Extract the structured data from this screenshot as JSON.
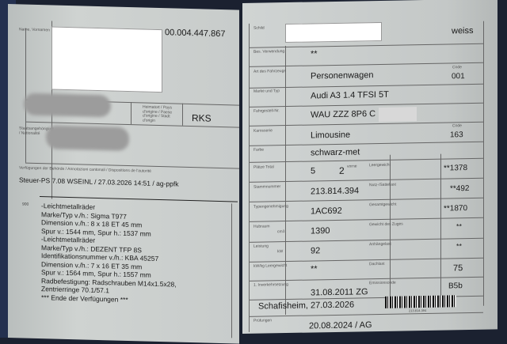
{
  "left_page": {
    "doc_number": "00.004.447.867",
    "labels": {
      "name": "Name, Vornamen",
      "origin": "Heimatort / Pays d'origine / Paese d'origine / Stadt d'origin",
      "nationality": "Staatsangehörigkeit / Nationalité",
      "official_notes": "Verfügungen der Behörde / Annotazioni cantonali / Dispositions de l'autorité"
    },
    "origin_value": "RKS",
    "stamp_line": "Steuer-PS 7.08 WSEINL / 27.03.2026 14:51 / ag-ppfk",
    "notes_code": "900",
    "notes": [
      "-Leichtmetallräder",
      "Marke/Typ v./h.: Sigma T977",
      "Dimension v./h.: 8 x 18 ET 45 mm",
      "Spur v.: 1544 mm, Spur h.: 1537 mm",
      "-Leichtmetallräder",
      "Marke/Typ v./h.: DEZENT TFP 8S",
      "Identifikationsnummer v./h.: KBA 45257",
      "Dimension v./h.: 7 x 16 ET 35 mm",
      "Spur v.: 1564 mm, Spur h.: 1557 mm",
      "Radbefestigung: Radschrauben M14x1.5x28,",
      "Zentrierringe 70.1/57.1",
      "*** Ende der Verfügungen ***"
    ]
  },
  "right_page": {
    "plate_label": "Schild",
    "plate_color": "weiss",
    "special_use_label": "Bes. Verwendung",
    "special_use": "**",
    "vehicle_type_label": "Art des Fahrzeugs",
    "vehicle_type": "Personenwagen",
    "vehicle_type_code_label": "Code",
    "vehicle_type_code": "001",
    "make_label": "Marke und Typ",
    "make_model": "Audi A3 1.4 TFSI 5T",
    "vin_label": "Fahrgestell-Nr.",
    "vin": "WAU ZZZ 8P6 C",
    "body_label": "Karosserie",
    "body": "Limousine",
    "body_code_label": "Code",
    "body_code": "163",
    "color_label": "Farbe",
    "color": "schwarz-met",
    "seats_label": "Plätze Total",
    "seats": "5",
    "seats_front": "2",
    "seats_front_label": "vorne",
    "curb_weight_label": "Leergewicht",
    "curb_weight": "**1378",
    "master_number_label": "Stammnummer",
    "master_number": "213.814.394",
    "payload_label": "Nutz-/Sattellast",
    "payload": "**492",
    "type_approval_label": "Typengenehmigung",
    "type_approval": "1AC692",
    "gross_weight_label": "Gesamtgewicht",
    "gross_weight": "**1870",
    "displacement_label": "Hubraum",
    "displacement_unit": "cm3",
    "displacement": "1390",
    "train_weight_label": "Gewicht des Zuges",
    "train_weight": "**",
    "power_label": "Leistung",
    "power_unit": "kW",
    "power": "92",
    "trailer_load_label": "Anhängelast",
    "trailer_load": "**",
    "power_weight_label": "kW/kg Leergewicht",
    "power_weight": "**",
    "roof_load_label": "Dachlast",
    "roof_load": "75",
    "first_reg_label": "1. Inverkehrsetzung",
    "first_registration": "31.08.2011 ZG",
    "emission_label": "Emissionscode",
    "emission_code": "B5b",
    "place_date": "Schafisheim, 27.03.2026",
    "barcode_text": "213.814.394",
    "inspection_label": "Prüfungen",
    "inspection": "20.08.2024 / AG"
  }
}
